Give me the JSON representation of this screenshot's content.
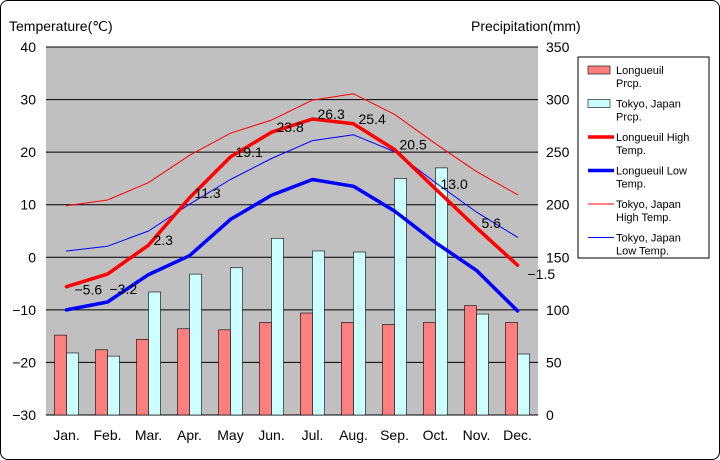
{
  "chart_data": {
    "type": "bar-line-combo",
    "title": "",
    "left_axis": {
      "label": "Temperature(℃)",
      "ylim": [
        -30,
        40
      ],
      "ticks": [
        40,
        30,
        20,
        10,
        0,
        -10,
        -20,
        -30
      ],
      "tick_labels": [
        "40",
        "30",
        "20",
        "10",
        "0",
        "−10",
        "−20",
        "−30"
      ]
    },
    "right_axis": {
      "label": "Precipitation(mm)",
      "ylim": [
        0,
        350
      ],
      "ticks": [
        350,
        300,
        250,
        200,
        150,
        100,
        50,
        0
      ],
      "tick_labels": [
        "350",
        "300",
        "250",
        "200",
        "150",
        "100",
        "50",
        "0"
      ]
    },
    "categories": [
      "Jan.",
      "Feb.",
      "Mar.",
      "Apr.",
      "May",
      "Jun.",
      "Jul.",
      "Aug.",
      "Sep.",
      "Oct.",
      "Nov.",
      "Dec."
    ],
    "grid": true,
    "legend_position": "right",
    "series": [
      {
        "name": "Longueuil Prcp.",
        "type": "bar",
        "axis": "right",
        "color": "#ff7f7f",
        "values": [
          76,
          62,
          72,
          82,
          81,
          88,
          97,
          88,
          86,
          88,
          104,
          88
        ]
      },
      {
        "name": "Tokyo, Japan Prcp.",
        "type": "bar",
        "axis": "right",
        "color": "#ccffff",
        "values": [
          59,
          56,
          117,
          134,
          140,
          168,
          156,
          155,
          225,
          235,
          96,
          58
        ]
      },
      {
        "name": "Longueuil High Temp.",
        "type": "line",
        "axis": "left",
        "color": "#ff0000",
        "width": 3.5,
        "values": [
          -5.6,
          -3.2,
          2.3,
          11.3,
          19.1,
          23.8,
          26.3,
          25.4,
          20.5,
          13.0,
          5.6,
          -1.5
        ],
        "labels": [
          "−5.6",
          "−3.2",
          "2.3",
          "11.3",
          "19.1",
          "23.8",
          "26.3",
          "25.4",
          "20.5",
          "13.0",
          "5.6",
          "−1.5"
        ]
      },
      {
        "name": "Longueuil Low Temp.",
        "type": "line",
        "axis": "left",
        "color": "#0000ff",
        "width": 3.5,
        "values": [
          -10,
          -8.5,
          -3.3,
          0.3,
          7.2,
          11.8,
          14.8,
          13.5,
          8.8,
          2.8,
          -2.5,
          -10.2
        ]
      },
      {
        "name": "Tokyo, Japan High Temp.",
        "type": "line",
        "axis": "left",
        "color": "#ff0000",
        "width": 1,
        "values": [
          9.8,
          10.9,
          14.2,
          19.4,
          23.6,
          26.1,
          29.9,
          31.1,
          27.2,
          21.6,
          16.3,
          11.9
        ]
      },
      {
        "name": "Tokyo, Japan Low Temp.",
        "type": "line",
        "axis": "left",
        "color": "#0000ff",
        "width": 1,
        "values": [
          1.2,
          2.1,
          5.0,
          10.1,
          14.8,
          18.8,
          22.2,
          23.3,
          20.1,
          14.2,
          8.6,
          3.8
        ]
      }
    ]
  },
  "legend": [
    {
      "label": "Longueuil Prcp.",
      "kind": "bar",
      "color": "#ff7f7f"
    },
    {
      "label": "Tokyo, Japan Prcp.",
      "kind": "bar",
      "color": "#ccffff"
    },
    {
      "label": "Longueuil High Temp.",
      "kind": "line",
      "color": "#ff0000",
      "thick": true
    },
    {
      "label": "Longueuil Low Temp.",
      "kind": "line",
      "color": "#0000ff",
      "thick": true
    },
    {
      "label": "Tokyo, Japan High Temp.",
      "kind": "line",
      "color": "#ff0000",
      "thick": false
    },
    {
      "label": "Tokyo, Japan Low Temp.",
      "kind": "line",
      "color": "#0000ff",
      "thick": false
    }
  ],
  "colors": {
    "plot_bg": "#c0c0c0",
    "grid": "#000000",
    "bar_stroke": "#000000"
  }
}
